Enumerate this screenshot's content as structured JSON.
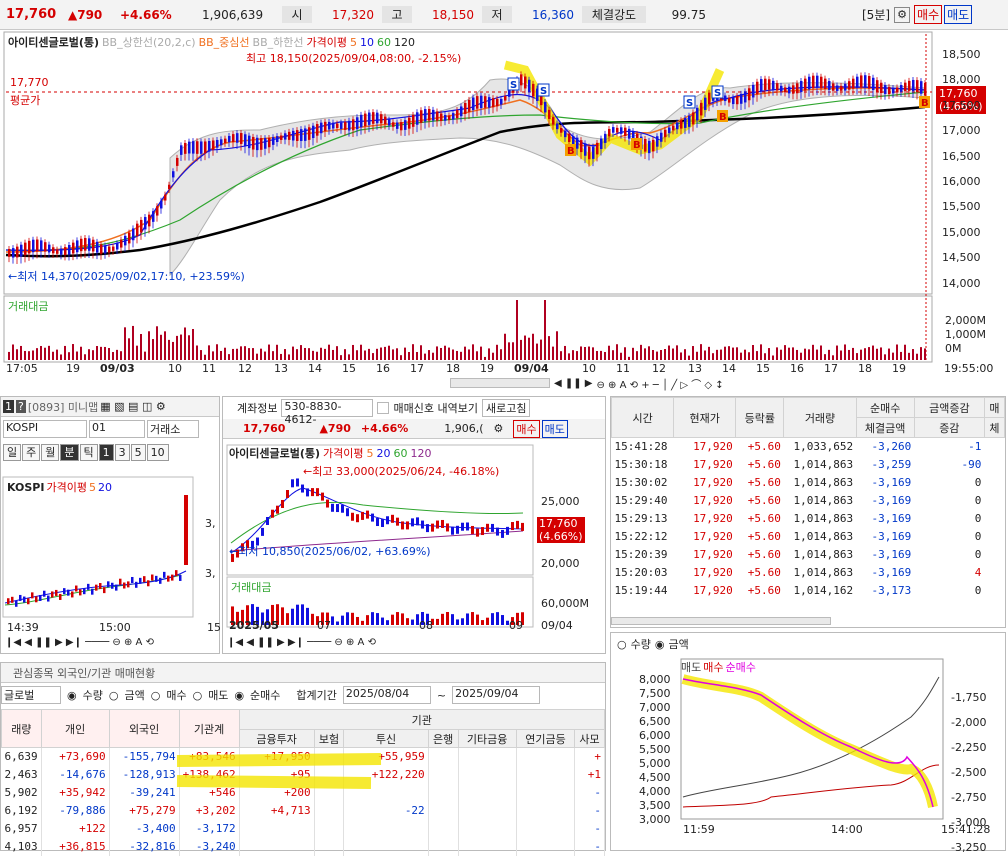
{
  "top": {
    "price": "17,760",
    "change": "▲790",
    "pct": "+4.66%",
    "volume": "1,906,639",
    "open_label": "시",
    "open": "17,320",
    "high_label": "고",
    "high": "18,150",
    "low_label": "저",
    "low": "16,360",
    "strength_label": "체결강도",
    "strength": "99.75",
    "interval": "[5분]",
    "buy": "매수",
    "sell": "매도"
  },
  "main": {
    "legend": [
      "아이티센글로벌(통)",
      "BB_상한선(20,2,c)",
      "BB_중심선",
      "BB_하한선",
      "가격이평",
      "5",
      "10",
      "60",
      "120"
    ],
    "high_note": "최고 18,150(2025/09/04,08:00, -2.15%)",
    "low_note": "←최저 14,370(2025/09/02,17:10, +23.59%)",
    "avg_price": "17,770",
    "avg_label": "평균가",
    "last_tag": [
      "17,760",
      "(4.66%)"
    ],
    "y_labels": [
      "18,500",
      "18,000",
      "17,500",
      "17,000",
      "16,500",
      "16,000",
      "15,500",
      "15,000",
      "14,500",
      "14,000"
    ],
    "vol_title": "거래대금",
    "vol_labels": [
      "2,000M",
      "1,000M",
      "0M"
    ],
    "x_labels": [
      "17:05",
      "19",
      "09/03",
      "10",
      "11",
      "12",
      "13",
      "14",
      "15",
      "16",
      "17",
      "18",
      "19",
      "09/04",
      "10",
      "11",
      "12",
      "13",
      "14",
      "15",
      "16",
      "17",
      "18",
      "19",
      "19:55:00"
    ]
  },
  "left": {
    "code": "[0893] 미니맵",
    "index": "KOSPI",
    "num": "01",
    "btn": "거래소",
    "periods": [
      "일",
      "주",
      "월",
      "분",
      "틱",
      "1",
      "3",
      "5",
      "10"
    ],
    "legend": [
      "KOSPI",
      "가격이평",
      "5",
      "20"
    ],
    "ylabels": [
      "3,",
      "3,"
    ],
    "x_labels": [
      "14:39",
      "15:00",
      "15"
    ]
  },
  "mid": {
    "account_label": "계좌정보",
    "account": "530-8830-4612-",
    "signal": "매매신호 내역보기",
    "refresh": "새로고침",
    "price": "17,760",
    "change": "▲790",
    "pct": "+4.66%",
    "vol": "1,906,(",
    "buy": "매수",
    "sell": "매도",
    "legend": [
      "아이티센글로벌(통)",
      "가격이평",
      "5",
      "20",
      "60",
      "120"
    ],
    "high_note": "←최고 33,000(2025/06/24, -46.18%)",
    "low_note": "←최저 10,850(2025/06/02, +63.69%)",
    "y1": "25,000",
    "y2": "20,000",
    "tag": [
      "17,760",
      "(4.66%)"
    ],
    "vol_title": "거래대금",
    "vol_y": "60,000M",
    "x_labels": [
      "2025/05",
      "07",
      "08",
      "09",
      "09/04"
    ]
  },
  "ticks": {
    "headers": [
      "시간",
      "현재가",
      "등락률",
      "거래량",
      "순매수",
      "체결금액",
      "증감",
      "매"
    ],
    "subhdr": "금액증감",
    "sub2": "체",
    "rows": [
      [
        "15:41:28",
        "17,920",
        "+5.60",
        "1,033,652",
        "-3,260",
        "-1"
      ],
      [
        "15:30:18",
        "17,920",
        "+5.60",
        "1,014,863",
        "-3,259",
        "-90"
      ],
      [
        "15:30:02",
        "17,920",
        "+5.60",
        "1,014,863",
        "-3,169",
        "0"
      ],
      [
        "15:29:40",
        "17,920",
        "+5.60",
        "1,014,863",
        "-3,169",
        "0"
      ],
      [
        "15:29:13",
        "17,920",
        "+5.60",
        "1,014,863",
        "-3,169",
        "0"
      ],
      [
        "15:22:12",
        "17,920",
        "+5.60",
        "1,014,863",
        "-3,169",
        "0"
      ],
      [
        "15:20:39",
        "17,920",
        "+5.60",
        "1,014,863",
        "-3,169",
        "0"
      ],
      [
        "15:20:03",
        "17,920",
        "+5.60",
        "1,014,863",
        "-3,169",
        "4"
      ],
      [
        "15:19:44",
        "17,920",
        "+5.60",
        "1,014,162",
        "-3,173",
        "0"
      ]
    ]
  },
  "flow": {
    "radio": [
      "수량",
      "금액"
    ],
    "legend": [
      "매도",
      "매수",
      "순매수"
    ],
    "left_y": [
      "8,000",
      "7,500",
      "7,000",
      "6,500",
      "6,000",
      "5,500",
      "5,000",
      "4,500",
      "4,000",
      "3,500",
      "3,000"
    ],
    "right_y": [
      "-1,750",
      "-2,000",
      "-2,250",
      "-2,500",
      "-2,750",
      "-3,000",
      "-3,250"
    ],
    "x": [
      "11:59",
      "14:00",
      "15:41:28"
    ]
  },
  "inst": {
    "tabs": [
      "관심종목 외국인/기관 매매현황"
    ],
    "name": "글로벌",
    "radios": [
      "수량",
      "금액",
      "매수",
      "매도",
      "순매수"
    ],
    "period_label": "합계기간",
    "from": "2025/08/04",
    "to": "2025/09/04",
    "headers": [
      "래량",
      "개인",
      "외국인",
      "기관계",
      "금융투자",
      "보험",
      "투신",
      "은행",
      "기타금융",
      "연기금등",
      "사모"
    ],
    "group": "기관",
    "rows": [
      [
        "6,639",
        "+73,690",
        "-155,794",
        "+83,546",
        "+17,950",
        "",
        "+55,959",
        "",
        "",
        "",
        "+"
      ],
      [
        "2,463",
        "-14,676",
        "-128,913",
        "+138,462",
        "+95",
        "",
        "+122,220",
        "",
        "",
        "",
        "+1"
      ],
      [
        "5,902",
        "+35,942",
        "-39,241",
        "+546",
        "+200",
        "",
        "",
        "",
        "",
        "",
        "-"
      ],
      [
        "6,192",
        "-79,886",
        "+75,279",
        "+3,202",
        "+4,713",
        "",
        "-22",
        "",
        "",
        "",
        "-"
      ],
      [
        "6,957",
        "+122",
        "-3,400",
        "-3,172",
        "",
        "",
        "",
        "",
        "",
        "",
        "-"
      ],
      [
        "4,103",
        "+36,815",
        "-32,816",
        "-3,240",
        "",
        "",
        "",
        "",
        "",
        "",
        "-"
      ]
    ]
  }
}
